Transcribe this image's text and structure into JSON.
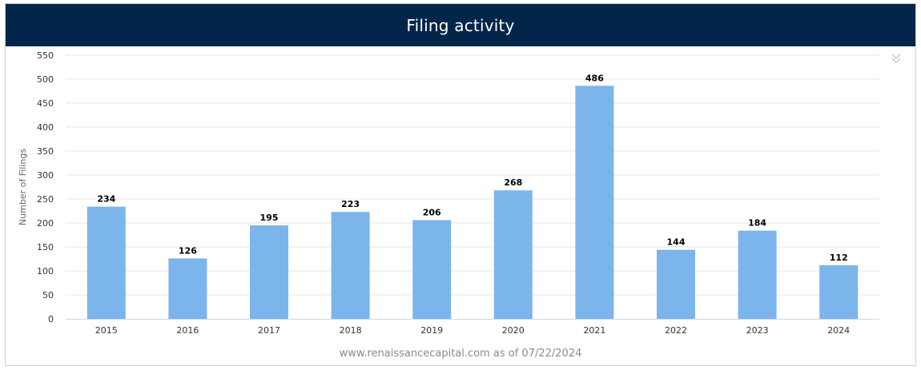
{
  "header": {
    "title": "Filing activity"
  },
  "footer": {
    "text": "www.renaissancecapital.com as of 07/22/2024"
  },
  "colors": {
    "bar": "#7cb5ec",
    "header_bg": "#02264a",
    "grid": "#e6e6e6",
    "axis_text": "#333333"
  },
  "icons": {
    "export_menu": "chevron-double-down-icon"
  },
  "chart_data": {
    "type": "bar",
    "title": "Filing activity",
    "xlabel": "",
    "ylabel": "Number of Filings",
    "categories": [
      "2015",
      "2016",
      "2017",
      "2018",
      "2019",
      "2020",
      "2021",
      "2022",
      "2023",
      "2024"
    ],
    "values": [
      234,
      126,
      195,
      223,
      206,
      268,
      486,
      144,
      184,
      112
    ],
    "ylim": [
      0,
      550
    ],
    "yticks": [
      0,
      50,
      100,
      150,
      200,
      250,
      300,
      350,
      400,
      450,
      500,
      550
    ],
    "grid": true,
    "data_labels": true
  }
}
